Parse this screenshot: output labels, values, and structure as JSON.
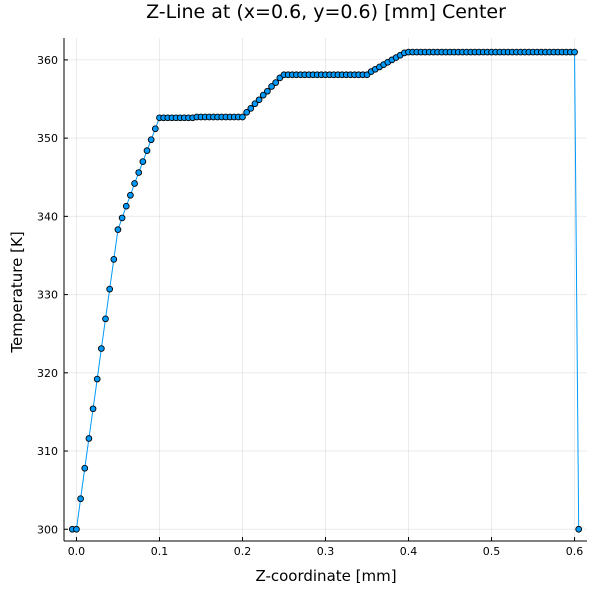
{
  "chart_data": {
    "type": "line",
    "title": "Z-Line at (x=0.6, y=0.6) [mm] Center",
    "xlabel": "Z-coordinate [mm]",
    "ylabel": "Temperature [K]",
    "xlim": [
      -0.015,
      0.615
    ],
    "ylim": [
      298.5,
      362.8
    ],
    "xticks": [
      0.0,
      0.1,
      0.2,
      0.3,
      0.4,
      0.5,
      0.6
    ],
    "xtick_labels": [
      "0.0",
      "0.1",
      "0.2",
      "0.3",
      "0.4",
      "0.5",
      "0.6"
    ],
    "yticks": [
      300,
      310,
      320,
      330,
      340,
      350,
      360
    ],
    "ytick_labels": [
      "300",
      "310",
      "320",
      "330",
      "340",
      "350",
      "360"
    ],
    "grid": true,
    "legend": "none",
    "series": [
      {
        "line_color": "#009AFA",
        "marker_color": "#009AFA",
        "marker_edge": "#000000",
        "x": [
          -0.005,
          0.0,
          0.005,
          0.01,
          0.015,
          0.02,
          0.025,
          0.03,
          0.035,
          0.04,
          0.045,
          0.05,
          0.055,
          0.06,
          0.065,
          0.07,
          0.075,
          0.08,
          0.085,
          0.09,
          0.095,
          0.1,
          0.105,
          0.11,
          0.115,
          0.12,
          0.125,
          0.13,
          0.135,
          0.14,
          0.145,
          0.15,
          0.155,
          0.16,
          0.165,
          0.17,
          0.175,
          0.18,
          0.185,
          0.19,
          0.195,
          0.2,
          0.205,
          0.21,
          0.215,
          0.22,
          0.225,
          0.23,
          0.235,
          0.24,
          0.245,
          0.25,
          0.255,
          0.26,
          0.265,
          0.27,
          0.275,
          0.28,
          0.285,
          0.29,
          0.295,
          0.3,
          0.305,
          0.31,
          0.315,
          0.32,
          0.325,
          0.33,
          0.335,
          0.34,
          0.345,
          0.35,
          0.355,
          0.36,
          0.365,
          0.37,
          0.375,
          0.38,
          0.385,
          0.39,
          0.395,
          0.4,
          0.405,
          0.41,
          0.415,
          0.42,
          0.425,
          0.43,
          0.435,
          0.44,
          0.445,
          0.45,
          0.455,
          0.46,
          0.465,
          0.47,
          0.475,
          0.48,
          0.485,
          0.49,
          0.495,
          0.5,
          0.505,
          0.51,
          0.515,
          0.52,
          0.525,
          0.53,
          0.535,
          0.54,
          0.545,
          0.55,
          0.555,
          0.56,
          0.565,
          0.57,
          0.575,
          0.58,
          0.585,
          0.59,
          0.595,
          0.6,
          0.605
        ],
        "y": [
          300.0,
          300.0,
          303.9,
          307.8,
          311.6,
          315.4,
          319.2,
          323.1,
          326.9,
          330.7,
          334.5,
          338.3,
          339.8,
          341.3,
          342.7,
          344.2,
          345.6,
          347.0,
          348.4,
          349.8,
          351.2,
          352.6,
          352.6,
          352.6,
          352.6,
          352.6,
          352.6,
          352.6,
          352.6,
          352.6,
          352.7,
          352.7,
          352.7,
          352.7,
          352.7,
          352.7,
          352.7,
          352.7,
          352.7,
          352.7,
          352.7,
          352.7,
          353.3,
          353.8,
          354.4,
          354.9,
          355.5,
          356.0,
          356.6,
          357.1,
          357.7,
          358.1,
          358.1,
          358.1,
          358.1,
          358.1,
          358.1,
          358.1,
          358.1,
          358.1,
          358.1,
          358.1,
          358.1,
          358.1,
          358.1,
          358.1,
          358.1,
          358.1,
          358.1,
          358.1,
          358.1,
          358.1,
          358.5,
          358.8,
          359.1,
          359.4,
          359.7,
          360.0,
          360.3,
          360.6,
          360.9,
          361.0,
          361.0,
          361.0,
          361.0,
          361.0,
          361.0,
          361.0,
          361.0,
          361.0,
          361.0,
          361.0,
          361.0,
          361.0,
          361.0,
          361.0,
          361.0,
          361.0,
          361.0,
          361.0,
          361.0,
          361.0,
          361.0,
          361.0,
          361.0,
          361.0,
          361.0,
          361.0,
          361.0,
          361.0,
          361.0,
          361.0,
          361.0,
          361.0,
          361.0,
          361.0,
          361.0,
          361.0,
          361.0,
          361.0,
          361.0,
          361.0,
          300.0
        ]
      }
    ]
  }
}
